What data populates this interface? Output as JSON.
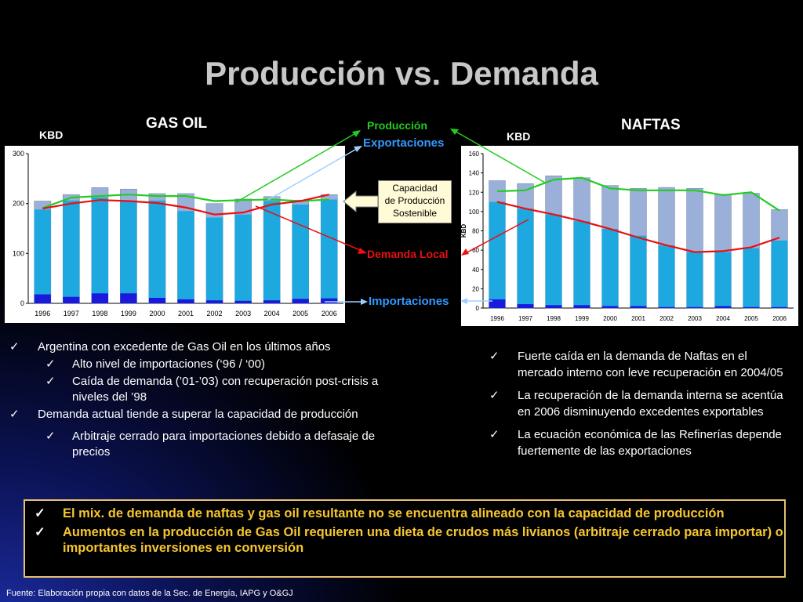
{
  "title": "Producción vs. Demanda",
  "gasoil": {
    "title": "GAS OIL",
    "unit": "KBD",
    "chart_data": {
      "type": "bar",
      "categories": [
        "1996",
        "1997",
        "1998",
        "1999",
        "2000",
        "2001",
        "2002",
        "2003",
        "2004",
        "2005",
        "2006"
      ],
      "ylim": [
        0,
        300
      ],
      "yticks": [
        0,
        100,
        200,
        300
      ],
      "series": [
        {
          "name": "Importaciones",
          "values": [
            18,
            13,
            20,
            20,
            11,
            8,
            6,
            5,
            6,
            9,
            10
          ],
          "kind": "bar"
        },
        {
          "name": "Demanda Local",
          "values": [
            188,
            206,
            212,
            206,
            206,
            185,
            172,
            178,
            205,
            198,
            208
          ],
          "kind": "bar"
        },
        {
          "name": "Capacidad de Producción Sostenible",
          "values": [
            205,
            218,
            232,
            229,
            220,
            220,
            200,
            209,
            214,
            207,
            218
          ],
          "kind": "bar"
        },
        {
          "name": "Producción",
          "values": [
            191,
            212,
            215,
            218,
            215,
            215,
            205,
            207,
            208,
            205,
            208
          ],
          "kind": "line"
        },
        {
          "name": "Demanda Local",
          "values": [
            190,
            200,
            207,
            205,
            201,
            192,
            178,
            182,
            198,
            205,
            218
          ],
          "kind": "line"
        }
      ]
    }
  },
  "naftas": {
    "title": "NAFTAS",
    "unit": "KBD",
    "ylabel": "KBD",
    "chart_data": {
      "type": "bar",
      "categories": [
        "1996",
        "1997",
        "1998",
        "1999",
        "2000",
        "2001",
        "2002",
        "2003",
        "2004",
        "2005",
        "2006"
      ],
      "ylim": [
        0,
        160
      ],
      "yticks": [
        0,
        20,
        40,
        60,
        80,
        100,
        120,
        140,
        160
      ],
      "ylabel": "KBD",
      "series": [
        {
          "name": "Importaciones",
          "values": [
            9,
            4,
            3,
            3,
            2,
            2,
            1,
            1,
            2,
            1,
            1
          ],
          "kind": "bar"
        },
        {
          "name": "Demanda Local",
          "values": [
            110,
            103,
            97,
            90,
            82,
            75,
            65,
            58,
            58,
            62,
            70
          ],
          "kind": "bar"
        },
        {
          "name": "Capacidad de Producción Sostenible",
          "values": [
            132,
            129,
            137,
            135,
            127,
            124,
            125,
            124,
            118,
            119,
            102
          ],
          "kind": "bar"
        },
        {
          "name": "Producción",
          "values": [
            121,
            122,
            133,
            135,
            124,
            122,
            122,
            122,
            117,
            120,
            101
          ],
          "kind": "line"
        },
        {
          "name": "Demanda Local",
          "values": [
            110,
            103,
            97,
            90,
            82,
            73,
            65,
            58,
            59,
            63,
            73
          ],
          "kind": "line"
        }
      ]
    }
  },
  "legend": {
    "produccion": "Producción",
    "exportaciones": "Exportaciones",
    "demanda_local": "Demanda Local",
    "importaciones": "Importaciones",
    "capacidad_l1": "Capacidad",
    "capacidad_l2": "de Producción",
    "capacidad_l3": "Sostenible"
  },
  "left_bullets": [
    {
      "text": "Argentina con excedente de Gas Oil en los últimos años",
      "level": 1
    },
    {
      "text": "Alto nivel de importaciones (‘96 / ‘00)",
      "level": 2
    },
    {
      "text": "Caída de demanda (’01-’03)  con recuperación post-crisis a niveles del ’98",
      "level": 2
    },
    {
      "text": "Demanda actual tiende a superar la capacidad de producción",
      "level": 1
    },
    {
      "text": "Arbitraje cerrado para importaciones debido a defasaje de precios",
      "level": 2
    }
  ],
  "right_bullets": [
    {
      "text": "Fuerte caída en la demanda de Naftas en el mercado interno con leve recuperación en 2004/05"
    },
    {
      "text": "La recuperación de la demanda interna se acentúa en 2006 disminuyendo excedentes exportables"
    },
    {
      "text": "La ecuación económica de las Refinerías depende fuertemente de las exportaciones"
    }
  ],
  "conclusions": [
    {
      "text": "El mix. de demanda de naftas y gas oil resultante no se encuentra alineado con la capacidad de producción"
    },
    {
      "text": "Aumentos en la producción de Gas Oil requieren una dieta de crudos más livianos (arbitraje cerrado para importar) o importantes inversiones en conversión"
    }
  ],
  "check_glyph": "✓",
  "source": "Fuente: Elaboración propia con datos de la Sec. de Energía, IAPG y O&GJ",
  "colors": {
    "produccion": "#22cc22",
    "exportaciones": "#3399ff",
    "demanda": "#e81010",
    "importaciones": "#3399ff",
    "bar_capacity": "#9bb0d8",
    "bar_demand": "#1ea8e0",
    "bar_import": "#1a1adc",
    "conclusion_text": "#f7c62f"
  }
}
